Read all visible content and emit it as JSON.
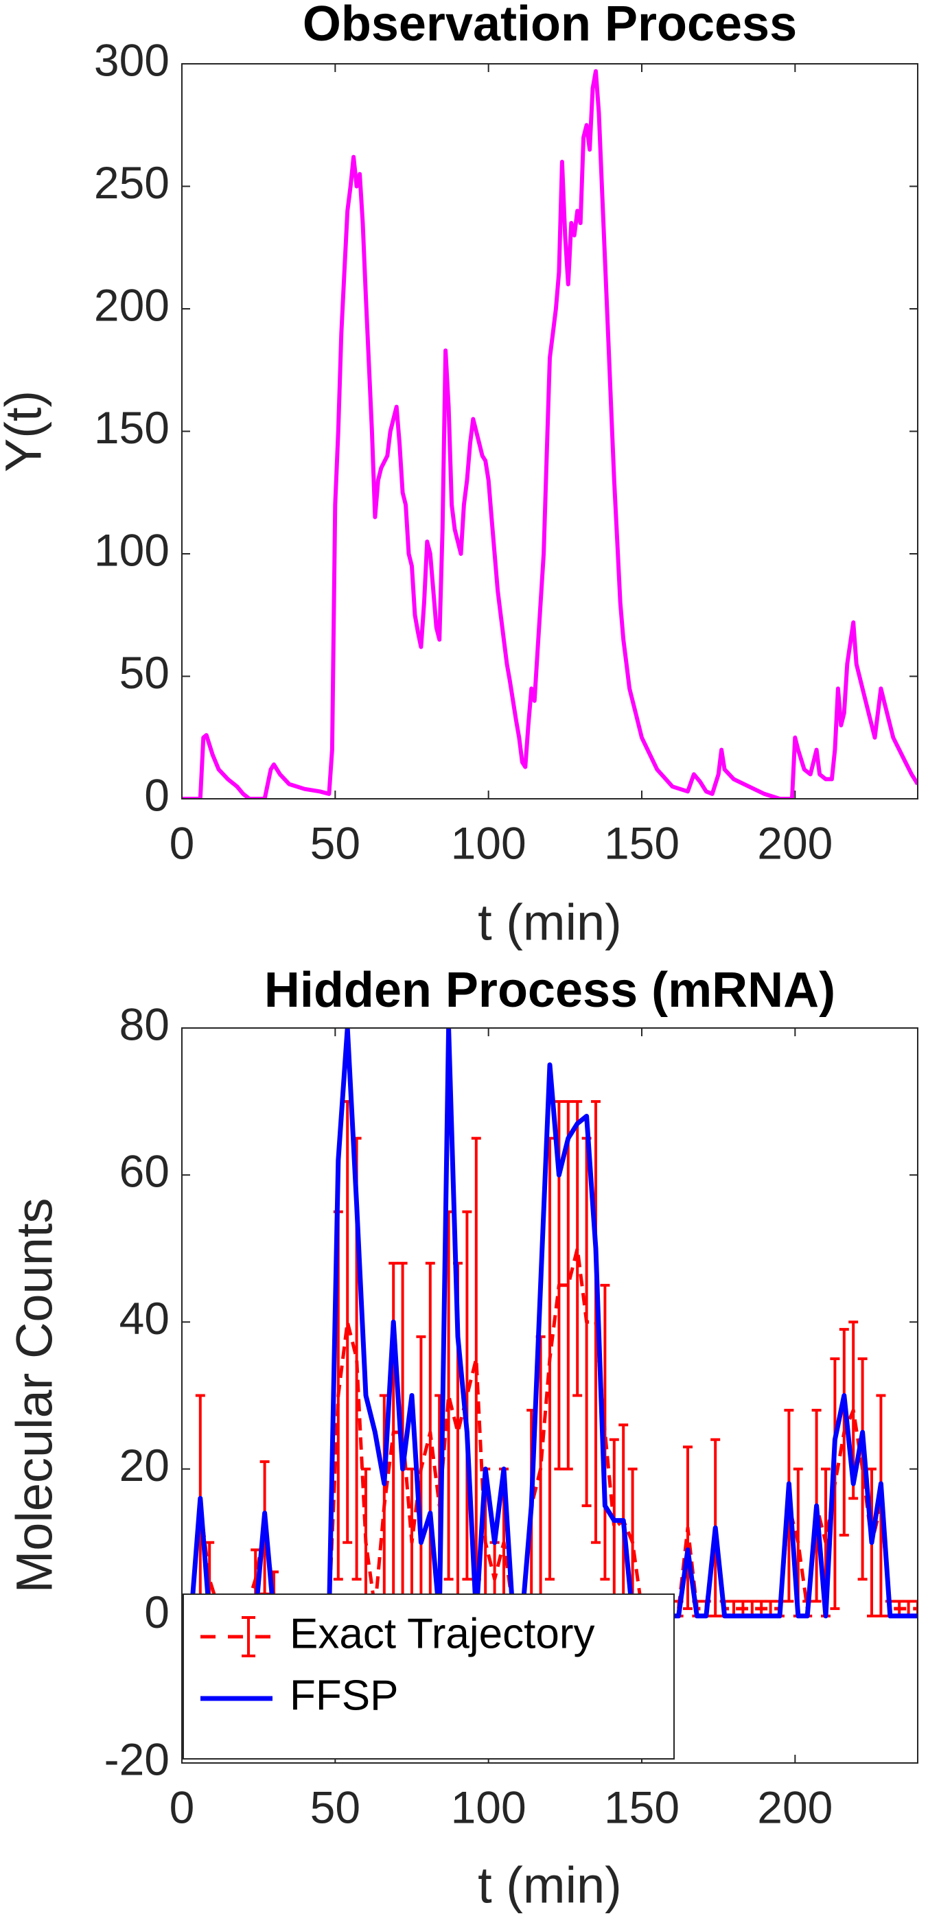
{
  "chart_data": [
    {
      "type": "line",
      "title": "Observation Process",
      "xlabel": "t (min)",
      "ylabel": "Y(t)",
      "color": "#ff00ff",
      "x": [
        0,
        6,
        7,
        8,
        10,
        12,
        15,
        18,
        20,
        22,
        27,
        29,
        30,
        32,
        35,
        40,
        45,
        48,
        49,
        50,
        51,
        52,
        53,
        54,
        55,
        56,
        57,
        58,
        59,
        60,
        62,
        63,
        64,
        65,
        67,
        68,
        69,
        70,
        71,
        72,
        73,
        74,
        75,
        76,
        77,
        78,
        79,
        80,
        81,
        82,
        83,
        84,
        85,
        86,
        87,
        88,
        89,
        90,
        91,
        92,
        93,
        94,
        95,
        96,
        97,
        98,
        99,
        100,
        101,
        102,
        103,
        104,
        105,
        106,
        107,
        108,
        109,
        110,
        111,
        112,
        113,
        114,
        115,
        116,
        117,
        118,
        119,
        120,
        121,
        122,
        123,
        124,
        125,
        126,
        127,
        128,
        129,
        130,
        131,
        132,
        133,
        134,
        135,
        136,
        137,
        138,
        139,
        140,
        141,
        142,
        143,
        144,
        145,
        146,
        148,
        150,
        155,
        160,
        165,
        167,
        169,
        171,
        173,
        175,
        176,
        177,
        180,
        185,
        190,
        195,
        199,
        200,
        201,
        203,
        205,
        207,
        208,
        210,
        212,
        213,
        214,
        215,
        216,
        217,
        219,
        220,
        222,
        224,
        226,
        228,
        230,
        232,
        234,
        236,
        238,
        240
      ],
      "values": [
        0,
        0,
        25,
        26,
        18,
        12,
        8,
        5,
        2,
        0,
        0,
        12,
        14,
        10,
        6,
        4,
        3,
        2,
        20,
        120,
        150,
        190,
        215,
        240,
        250,
        262,
        250,
        255,
        235,
        205,
        150,
        115,
        130,
        135,
        140,
        150,
        155,
        160,
        145,
        125,
        120,
        100,
        95,
        75,
        68,
        62,
        80,
        105,
        100,
        85,
        70,
        65,
        110,
        183,
        160,
        120,
        110,
        105,
        100,
        120,
        130,
        145,
        155,
        150,
        145,
        140,
        138,
        130,
        115,
        100,
        85,
        75,
        65,
        55,
        48,
        40,
        32,
        25,
        15,
        13,
        30,
        45,
        40,
        60,
        80,
        100,
        140,
        180,
        190,
        200,
        215,
        260,
        230,
        210,
        235,
        230,
        240,
        235,
        270,
        275,
        265,
        290,
        297,
        280,
        250,
        220,
        190,
        160,
        130,
        105,
        80,
        65,
        55,
        45,
        35,
        25,
        12,
        5,
        3,
        10,
        7,
        3,
        2,
        10,
        20,
        12,
        8,
        5,
        2,
        0,
        0,
        25,
        20,
        12,
        10,
        20,
        10,
        8,
        8,
        20,
        45,
        30,
        35,
        55,
        72,
        55,
        45,
        35,
        25,
        45,
        35,
        25,
        20,
        15,
        10,
        6
      ],
      "xlim": [
        0,
        240
      ],
      "xticks": [
        0,
        50,
        100,
        150,
        200
      ],
      "ylim": [
        0,
        300
      ],
      "yticks": [
        0,
        50,
        100,
        150,
        200,
        250,
        300
      ],
      "grid": false
    },
    {
      "type": "line",
      "title": "Hidden Process (mRNA)",
      "xlabel": "t (min)",
      "ylabel": "Molecular Counts",
      "legend": "lower left",
      "x": [
        0,
        3,
        6,
        9,
        12,
        15,
        18,
        21,
        24,
        27,
        30,
        33,
        36,
        39,
        42,
        45,
        48,
        51,
        54,
        57,
        60,
        63,
        66,
        69,
        72,
        75,
        78,
        81,
        84,
        87,
        90,
        93,
        96,
        99,
        102,
        105,
        108,
        111,
        114,
        117,
        120,
        123,
        126,
        129,
        132,
        135,
        138,
        141,
        144,
        147,
        150,
        153,
        156,
        159,
        162,
        165,
        168,
        171,
        174,
        177,
        180,
        183,
        186,
        189,
        192,
        195,
        198,
        201,
        204,
        207,
        210,
        213,
        216,
        219,
        222,
        225,
        228,
        231,
        234,
        237,
        240
      ],
      "series": [
        {
          "name": "Exact Trajectory",
          "color": "#ff0000",
          "values": [
            0,
            1,
            15,
            5,
            1,
            1,
            1,
            1,
            5,
            12,
            3,
            1,
            1,
            1,
            1,
            1,
            1,
            30,
            40,
            35,
            10,
            1,
            15,
            25,
            25,
            10,
            20,
            25,
            15,
            30,
            25,
            30,
            35,
            10,
            5,
            10,
            1,
            1,
            15,
            20,
            35,
            45,
            45,
            50,
            40,
            40,
            25,
            12,
            13,
            10,
            1,
            1,
            1,
            1,
            1,
            12,
            1,
            1,
            12,
            1,
            1,
            1,
            1,
            1,
            1,
            1,
            15,
            10,
            1,
            15,
            10,
            18,
            25,
            28,
            20,
            10,
            15,
            1,
            1,
            1,
            1
          ],
          "errors": [
            1,
            1,
            15,
            5,
            1,
            1,
            1,
            1,
            4,
            9,
            3,
            1,
            1,
            1,
            1,
            1,
            1,
            25,
            30,
            30,
            10,
            1,
            15,
            23,
            23,
            10,
            18,
            23,
            15,
            25,
            23,
            25,
            30,
            10,
            5,
            10,
            1,
            1,
            13,
            18,
            30,
            25,
            25,
            20,
            25,
            30,
            20,
            12,
            13,
            10,
            1,
            1,
            1,
            1,
            1,
            11,
            1,
            1,
            12,
            1,
            1,
            1,
            1,
            1,
            1,
            1,
            13,
            10,
            1,
            13,
            10,
            17,
            14,
            12,
            15,
            10,
            15,
            1,
            1,
            1,
            1
          ]
        },
        {
          "name": "FFSP",
          "color": "#0000ff",
          "values": [
            0,
            0,
            16,
            0,
            0,
            0,
            0,
            0,
            0,
            14,
            0,
            0,
            0,
            0,
            0,
            0,
            0,
            62,
            80,
            56,
            30,
            25,
            18,
            40,
            20,
            30,
            10,
            14,
            0,
            80,
            38,
            25,
            0,
            20,
            10,
            20,
            0,
            0,
            15,
            45,
            75,
            60,
            65,
            67,
            68,
            50,
            15,
            13,
            13,
            0,
            0,
            0,
            0,
            0,
            0,
            9,
            0,
            0,
            12,
            0,
            0,
            0,
            0,
            0,
            0,
            0,
            18,
            0,
            0,
            15,
            0,
            24,
            30,
            18,
            25,
            10,
            18,
            0,
            0,
            0,
            0
          ]
        }
      ],
      "xlim": [
        0,
        240
      ],
      "xticks": [
        0,
        50,
        100,
        150,
        200
      ],
      "ylim": [
        -20,
        80
      ],
      "yticks": [
        -20,
        0,
        20,
        40,
        60,
        80
      ],
      "grid": false
    }
  ]
}
